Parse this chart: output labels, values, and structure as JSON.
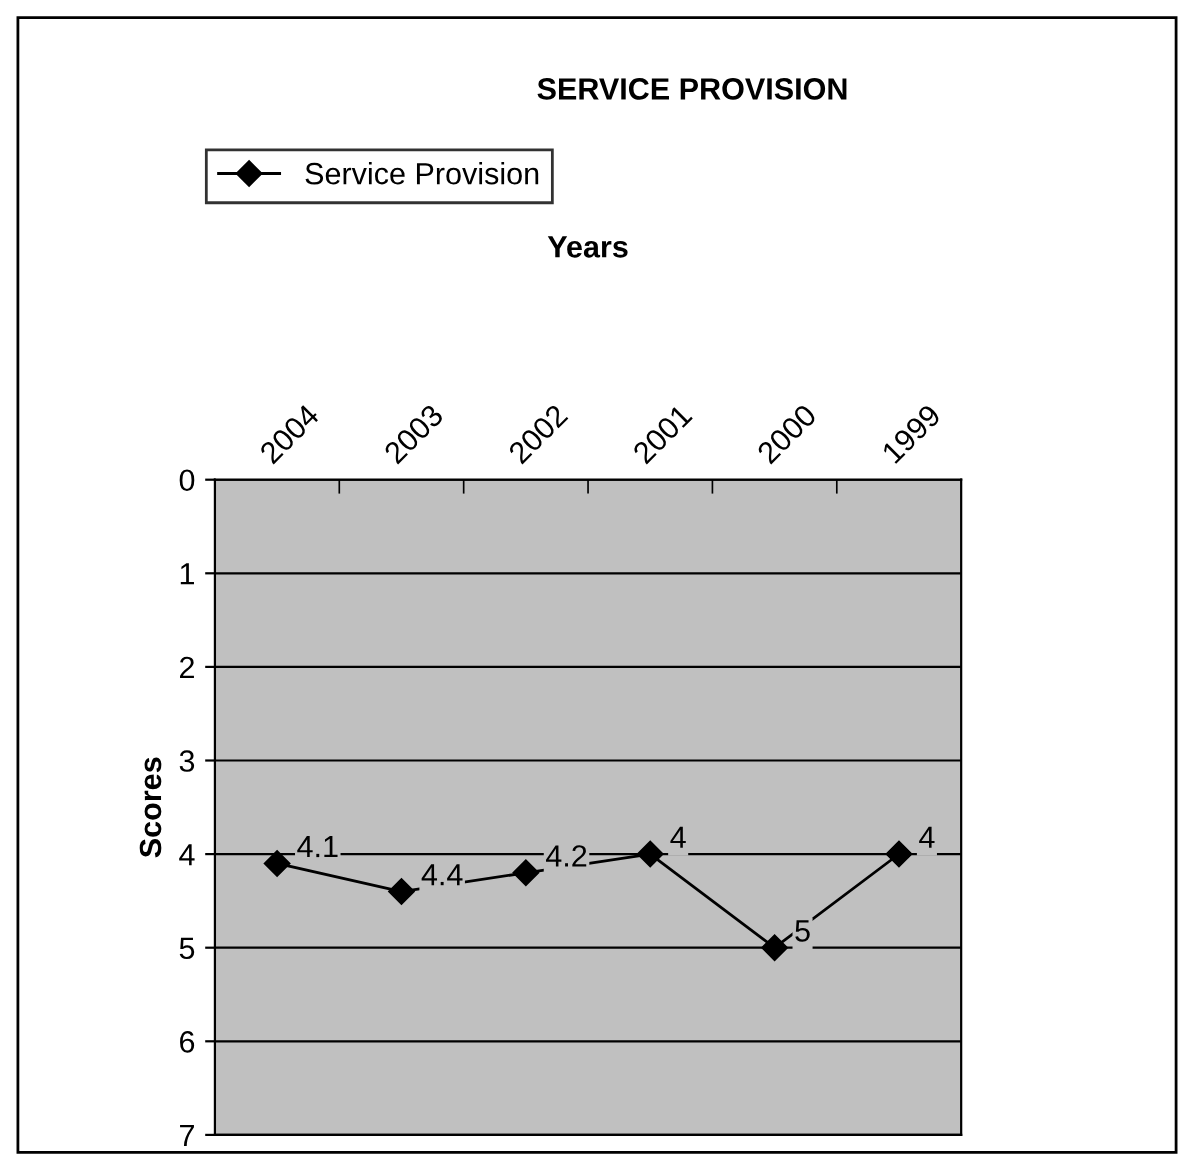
{
  "chart_data": {
    "type": "line",
    "title": "SERVICE PROVISION",
    "xlabel": "Years",
    "ylabel": "Scores",
    "categories": [
      "2004",
      "2003",
      "2002",
      "2001",
      "2000",
      "1999"
    ],
    "series": [
      {
        "name": "Service Provision",
        "color": "#000000",
        "values": [
          4.1,
          4.4,
          4.2,
          4,
          5,
          4
        ]
      }
    ],
    "ylim": [
      7,
      0
    ],
    "yticks": [
      0,
      1,
      2,
      3,
      4,
      5,
      6,
      7
    ],
    "grid": "y",
    "legend": "top left",
    "marker": "diamond",
    "line_style": "solid",
    "data_labels": true
  }
}
